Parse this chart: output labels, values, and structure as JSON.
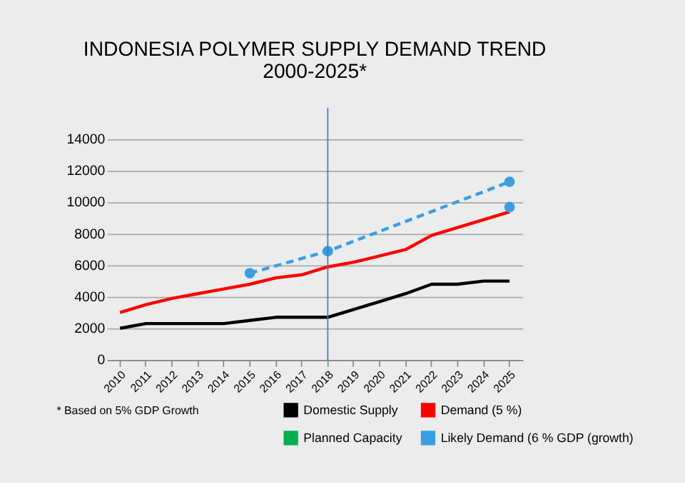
{
  "chart_data": {
    "type": "line",
    "title": "INDONESIA POLYMER SUPPLY DEMAND TREND\n2000-2025*",
    "categories": [
      "2010",
      "2011",
      "2012",
      "2013",
      "2014",
      "2015",
      "2016",
      "2017",
      "2018",
      "2019",
      "2020",
      "2021",
      "2022",
      "2023",
      "2024",
      "2025"
    ],
    "series": [
      {
        "name": "Domestic Supply",
        "color": "#000000",
        "values": [
          2000,
          2300,
          2300,
          2300,
          2300,
          2500,
          2700,
          2700,
          2700,
          3200,
          3700,
          4200,
          4800,
          4800,
          5000,
          5000
        ]
      },
      {
        "name": "Demand (5 %)",
        "color": "#ff0000",
        "values": [
          3000,
          3500,
          3900,
          4200,
          4500,
          4800,
          5200,
          5400,
          5900,
          6200,
          6600,
          7000,
          7900,
          8400,
          8900,
          9400
        ]
      },
      {
        "name": "Planned Capacity",
        "color": "#00b050",
        "values": [
          null,
          null,
          null,
          null,
          null,
          null,
          null,
          null,
          null,
          null,
          null,
          null,
          null,
          null,
          null,
          null
        ]
      },
      {
        "name": "Likely Demand (6 % GDP (growth)",
        "color": "#3a9ee4",
        "line_style": "dashed",
        "marker": "circle",
        "values": [
          null,
          null,
          null,
          null,
          null,
          5500,
          null,
          null,
          6900,
          null,
          null,
          null,
          null,
          null,
          null,
          11300
        ]
      },
      {
        "type": "scatter",
        "color": "#3a9ee4",
        "marker": "circle",
        "values": [
          null,
          null,
          null,
          null,
          null,
          null,
          null,
          null,
          null,
          null,
          null,
          null,
          null,
          null,
          null,
          9700
        ]
      }
    ],
    "ylim": [
      0,
      14000
    ],
    "yticks": [
      0,
      2000,
      4000,
      6000,
      8000,
      10000,
      12000,
      14000
    ],
    "grid": "y",
    "legend": "bottom right",
    "ref_lines": [
      {
        "axis": "x",
        "value": "2018",
        "color": "#4a7bb7"
      }
    ],
    "annotations": [
      "* Based on 5% GDP Growth"
    ]
  }
}
